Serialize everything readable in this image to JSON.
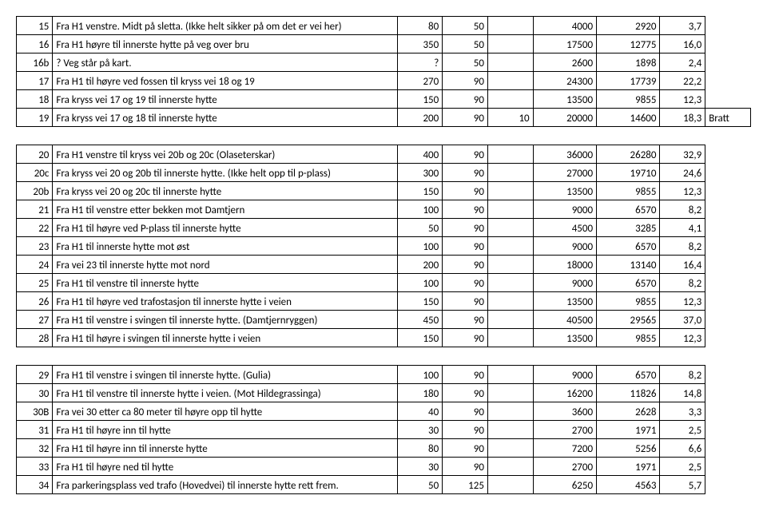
{
  "table": {
    "background_color": "#ffffff",
    "border_color": "#000000",
    "font_family": "Calibri",
    "font_size": 13,
    "rows": [
      {
        "a": "15",
        "b": "Fra H1 venstre. Midt på sletta. (Ikke helt sikker på om det er vei her)",
        "c": "80",
        "d": "50",
        "e": "",
        "f": "4000",
        "g": "2920",
        "h": "3,7",
        "i": ""
      },
      {
        "a": "16",
        "b": "Fra H1 høyre til innerste hytte på veg over bru",
        "c": "350",
        "d": "50",
        "e": "",
        "f": "17500",
        "g": "12775",
        "h": "16,0",
        "i": ""
      },
      {
        "a": "16b",
        "b": "? Veg står på kart.",
        "c": "?",
        "d": "50",
        "e": "",
        "f": "2600",
        "g": "1898",
        "h": "2,4",
        "i": ""
      },
      {
        "a": "17",
        "b": "Fra H1 til høyre ved fossen til kryss vei 18 og 19",
        "c": "270",
        "d": "90",
        "e": "",
        "f": "24300",
        "g": "17739",
        "h": "22,2",
        "i": ""
      },
      {
        "a": "18",
        "b": "Fra kryss vei 17 og 19 til innerste hytte",
        "c": "150",
        "d": "90",
        "e": "",
        "f": "13500",
        "g": "9855",
        "h": "12,3",
        "i": ""
      },
      {
        "a": "19",
        "b": "Fra kryss vei 17 og 18 til innerste hytte",
        "c": "200",
        "d": "90",
        "e": "10",
        "f": "20000",
        "g": "14600",
        "h": "18,3",
        "i": "Bratt"
      }
    ],
    "rows2": [
      {
        "a": "20",
        "b": "Fra H1 venstre til kryss vei 20b og 20c (Olaseterskar)",
        "c": "400",
        "d": "90",
        "e": "",
        "f": "36000",
        "g": "26280",
        "h": "32,9",
        "i": ""
      },
      {
        "a": "20c",
        "b": "Fra kryss vei 20 og 20b til innerste hytte. (Ikke helt opp til p-plass)",
        "c": "300",
        "d": "90",
        "e": "",
        "f": "27000",
        "g": "19710",
        "h": "24,6",
        "i": ""
      },
      {
        "a": "20b",
        "b": "Fra kryss vei 20 og 20c til innerste hytte",
        "c": "150",
        "d": "90",
        "e": "",
        "f": "13500",
        "g": "9855",
        "h": "12,3",
        "i": ""
      },
      {
        "a": "21",
        "b": "Fra H1 til venstre etter bekken mot Damtjern",
        "c": "100",
        "d": "90",
        "e": "",
        "f": "9000",
        "g": "6570",
        "h": "8,2",
        "i": ""
      },
      {
        "a": "22",
        "b": "Fra H1 til høyre ved P-plass til innerste hytte",
        "c": "50",
        "d": "90",
        "e": "",
        "f": "4500",
        "g": "3285",
        "h": "4,1",
        "i": ""
      },
      {
        "a": "23",
        "b": "Fra H1 til innerste hytte mot øst",
        "c": "100",
        "d": "90",
        "e": "",
        "f": "9000",
        "g": "6570",
        "h": "8,2",
        "i": ""
      },
      {
        "a": "24",
        "b": "Fra vei 23 til innerste hytte mot nord",
        "c": "200",
        "d": "90",
        "e": "",
        "f": "18000",
        "g": "13140",
        "h": "16,4",
        "i": ""
      },
      {
        "a": "25",
        "b": "Fra H1 til venstre til innerste hytte",
        "c": "100",
        "d": "90",
        "e": "",
        "f": "9000",
        "g": "6570",
        "h": "8,2",
        "i": ""
      },
      {
        "a": "26",
        "b": "Fra H1 til høyre ved trafostasjon til innerste hytte i veien",
        "c": "150",
        "d": "90",
        "e": "",
        "f": "13500",
        "g": "9855",
        "h": "12,3",
        "i": ""
      },
      {
        "a": "27",
        "b": "Fra H1 til venstre i svingen til innerste hytte. (Damtjernryggen)",
        "c": "450",
        "d": "90",
        "e": "",
        "f": "40500",
        "g": "29565",
        "h": "37,0",
        "i": ""
      },
      {
        "a": "28",
        "b": "Fra H1 til høyre i svingen til innerste hytte i veien",
        "c": "150",
        "d": "90",
        "e": "",
        "f": "13500",
        "g": "9855",
        "h": "12,3",
        "i": ""
      }
    ],
    "rows3": [
      {
        "a": "29",
        "b": "Fra H1 til venstre i svingen til innerste hytte. (Gulia)",
        "c": "100",
        "d": "90",
        "e": "",
        "f": "9000",
        "g": "6570",
        "h": "8,2",
        "i": ""
      },
      {
        "a": "30",
        "b": "Fra H1 til venstre til innerste hytte i veien. (Mot Hildegrassinga)",
        "c": "180",
        "d": "90",
        "e": "",
        "f": "16200",
        "g": "11826",
        "h": "14,8",
        "i": ""
      },
      {
        "a": "30B",
        "b": "Fra vei 30 etter ca 80 meter til høyre opp til hytte",
        "c": "40",
        "d": "90",
        "e": "",
        "f": "3600",
        "g": "2628",
        "h": "3,3",
        "i": ""
      },
      {
        "a": "31",
        "b": "Fra H1 til høyre inn til hytte",
        "c": "30",
        "d": "90",
        "e": "",
        "f": "2700",
        "g": "1971",
        "h": "2,5",
        "i": ""
      },
      {
        "a": "32",
        "b": "Fra H1 til høyre inn til innerste hytte",
        "c": "80",
        "d": "90",
        "e": "",
        "f": "7200",
        "g": "5256",
        "h": "6,6",
        "i": ""
      },
      {
        "a": "33",
        "b": "Fra H1 til høyre ned til hytte",
        "c": "30",
        "d": "90",
        "e": "",
        "f": "2700",
        "g": "1971",
        "h": "2,5",
        "i": ""
      },
      {
        "a": "34",
        "b": "Fra parkeringsplass ved trafo (Hovedvei) til innerste hytte rett frem.",
        "c": "50",
        "d": "125",
        "e": "",
        "f": "6250",
        "g": "4563",
        "h": "5,7",
        "i": ""
      }
    ]
  }
}
